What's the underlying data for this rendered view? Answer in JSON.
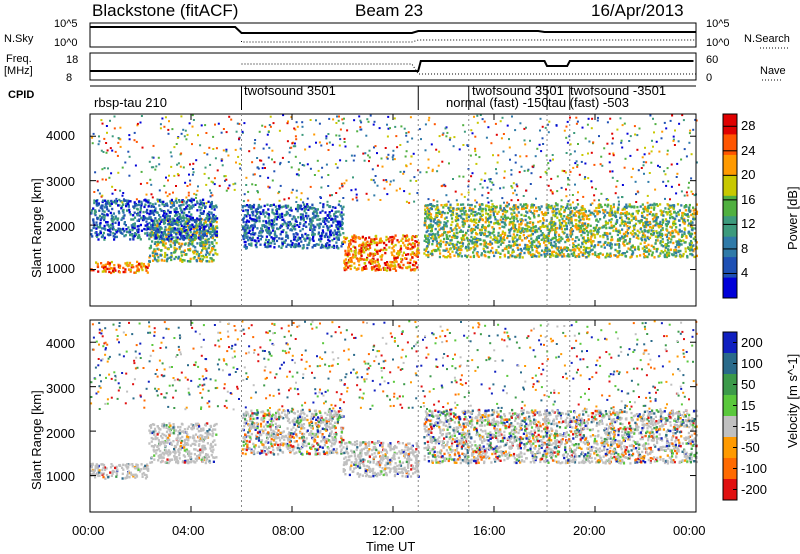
{
  "header": {
    "station": "Blackstone (fitACF)",
    "beam": "Beam 23",
    "date": "16/Apr/2013"
  },
  "params_panel": {
    "left_labels": [
      "N.Sky",
      "Freq.",
      "[MHz]",
      "CPID"
    ],
    "nsky_ticks": [
      "10^5",
      "10^0"
    ],
    "freq_ticks": [
      "18",
      "8"
    ],
    "right_labels": [
      "N.Search",
      "Nave"
    ],
    "right_ticks_top": [
      "10^5",
      "10^0"
    ],
    "right_ticks_bottom": [
      "60",
      "0"
    ]
  },
  "cpid_modes": [
    {
      "label": "rbsp-tau 210",
      "start_hour": 0.0
    },
    {
      "label": "twofsound 3501",
      "start_hour": 6.0
    },
    {
      "label": "normal (fast) -150",
      "start_hour": 13.0
    },
    {
      "label": "twofsound 3501",
      "start_hour": 15.0
    },
    {
      "label": "tau (fast) -503",
      "start_hour": 18.1
    },
    {
      "label": "twofsound -3501",
      "start_hour": 19.0
    }
  ],
  "chart_data": [
    {
      "type": "heatmap",
      "name": "power",
      "ylabel": "Slant Range [km]",
      "xlabel": "Time UT",
      "x_ticks": [
        "00:00",
        "04:00",
        "08:00",
        "12:00",
        "16:00",
        "20:00",
        "00:00"
      ],
      "xlim_hours": [
        0,
        24
      ],
      "ylim": [
        180,
        4500
      ],
      "y_ticks": [
        1000,
        2000,
        3000,
        4000
      ],
      "colorbar_label": "Power [dB]",
      "colorbar_ticks": [
        4,
        8,
        12,
        16,
        20,
        24,
        28
      ],
      "colorbar_range": [
        0,
        30
      ],
      "features": [
        {
          "hours": [
            0.0,
            2.3
          ],
          "range_km": [
            950,
            1200
          ],
          "level": "high"
        },
        {
          "hours": [
            2.3,
            5.0
          ],
          "range_km": [
            1200,
            2200
          ],
          "level": "medium"
        },
        {
          "hours": [
            0.0,
            5.0
          ],
          "range_km": [
            1700,
            2600
          ],
          "level": "low"
        },
        {
          "hours": [
            6.0,
            10.0
          ],
          "range_km": [
            1500,
            2500
          ],
          "level": "low"
        },
        {
          "hours": [
            10.0,
            13.0
          ],
          "range_km": [
            1000,
            1800
          ],
          "level": "high"
        },
        {
          "hours": [
            13.2,
            24.0
          ],
          "range_km": [
            1300,
            2500
          ],
          "level": "medium"
        }
      ]
    },
    {
      "type": "heatmap",
      "name": "velocity",
      "ylabel": "Slant Range [km]",
      "xlabel": "Time UT",
      "x_ticks": [
        "00:00",
        "04:00",
        "08:00",
        "12:00",
        "16:00",
        "20:00",
        "00:00"
      ],
      "xlim_hours": [
        0,
        24
      ],
      "ylim": [
        180,
        4500
      ],
      "y_ticks": [
        1000,
        2000,
        3000,
        4000
      ],
      "colorbar_label": "Velocity [m s^-1]",
      "colorbar_ticks": [
        200,
        100,
        50,
        15,
        -15,
        -50,
        -100,
        -200
      ],
      "colorbar_range": [
        -250,
        250
      ],
      "features": [
        {
          "hours": [
            0.0,
            2.3
          ],
          "range_km": [
            950,
            1300
          ],
          "level": "ground"
        },
        {
          "hours": [
            2.3,
            5.0
          ],
          "range_km": [
            1300,
            2200
          ],
          "level": "ground"
        },
        {
          "hours": [
            6.0,
            10.0
          ],
          "range_km": [
            1500,
            2500
          ],
          "level": "mixed"
        },
        {
          "hours": [
            10.0,
            13.0
          ],
          "range_km": [
            1000,
            1800
          ],
          "level": "ground"
        },
        {
          "hours": [
            13.2,
            24.0
          ],
          "range_km": [
            1300,
            2500
          ],
          "level": "mixed"
        }
      ]
    }
  ],
  "colors": {
    "power_scale": [
      "#0000d8",
      "#1e50b4",
      "#2f7aa8",
      "#3c9a7c",
      "#50b040",
      "#c8c800",
      "#ff9a00",
      "#ff5500",
      "#e00000"
    ],
    "velocity_scale": [
      "#1020c0",
      "#2a6a8a",
      "#3c9a4a",
      "#5ac83c",
      "#c0c0c0",
      "#ff9a00",
      "#ff6a00",
      "#e01010"
    ]
  }
}
